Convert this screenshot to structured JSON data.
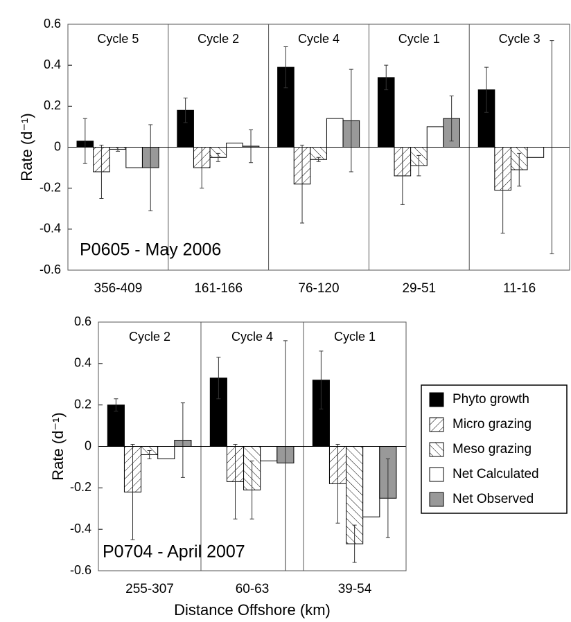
{
  "chart_data": [
    {
      "type": "bar",
      "annotation": "P0605 - May 2006",
      "y_label": "Rate (d⁻¹)",
      "categories": [
        "356-409",
        "161-166",
        "76-120",
        "29-51",
        "11-16"
      ],
      "group_labels": [
        "Cycle 5",
        "Cycle 2",
        "Cycle 4",
        "Cycle 1",
        "Cycle 3"
      ],
      "ylim": [
        -0.6,
        0.6
      ],
      "yticks": [
        0.6,
        0.4,
        0.2,
        0,
        -0.2,
        -0.4,
        -0.6
      ],
      "series": [
        {
          "color": "#000000",
          "hatch": "none",
          "values": [
            0.03,
            0.18,
            0.39,
            0.34,
            0.28
          ],
          "errors": [
            0.11,
            0.06,
            0.1,
            0.06,
            0.11
          ]
        },
        {
          "color": "#ffffff",
          "hatch": "back",
          "values": [
            -0.12,
            -0.1,
            -0.18,
            -0.14,
            -0.21
          ],
          "errors": [
            0.13,
            0.1,
            0.19,
            0.14,
            0.21
          ]
        },
        {
          "color": "#ffffff",
          "hatch": "forward",
          "values": [
            -0.01,
            -0.05,
            -0.06,
            -0.09,
            -0.11
          ],
          "errors": [
            0.01,
            0.02,
            0.01,
            0.05,
            0.08
          ]
        },
        {
          "color": "#ffffff",
          "hatch": "none",
          "values": [
            -0.1,
            0.02,
            0.14,
            0.1,
            -0.05
          ]
        },
        {
          "color": "#999999",
          "hatch": "none",
          "values": [
            -0.1,
            0.005,
            0.13,
            0.14,
            0
          ],
          "errors": [
            0.21,
            0.08,
            0.25,
            0.11,
            0.52
          ]
        }
      ]
    },
    {
      "type": "bar",
      "annotation": "P0704 - April 2007",
      "y_label": "Rate (d⁻¹)",
      "x_label": "Distance Offshore (km)",
      "categories": [
        "255-307",
        "60-63",
        "39-54"
      ],
      "group_labels": [
        "Cycle 2",
        "Cycle 4",
        "Cycle 1"
      ],
      "ylim": [
        -0.6,
        0.6
      ],
      "yticks": [
        0.6,
        0.4,
        0.2,
        0,
        -0.2,
        -0.4,
        -0.6
      ],
      "legend": "right",
      "series": [
        {
          "name": "Phyto growth",
          "color": "#000000",
          "hatch": "none",
          "values": [
            0.2,
            0.33,
            0.32
          ],
          "errors": [
            0.03,
            0.1,
            0.14
          ]
        },
        {
          "name": "Micro grazing",
          "color": "#ffffff",
          "hatch": "back",
          "values": [
            -0.22,
            -0.17,
            -0.18
          ],
          "errors": [
            0.23,
            0.18,
            0.19
          ]
        },
        {
          "name": "Meso grazing",
          "color": "#ffffff",
          "hatch": "forward",
          "values": [
            -0.04,
            -0.21,
            -0.47
          ],
          "errors": [
            0.02,
            0.14,
            0.09
          ]
        },
        {
          "name": "Net Calculated",
          "color": "#ffffff",
          "hatch": "none",
          "values": [
            -0.06,
            -0.07,
            -0.34
          ]
        },
        {
          "name": "Net Observed",
          "color": "#999999",
          "hatch": "none",
          "values": [
            0.03,
            -0.08,
            -0.25
          ],
          "errors": [
            0.18,
            0.59,
            0.19
          ]
        }
      ]
    }
  ]
}
